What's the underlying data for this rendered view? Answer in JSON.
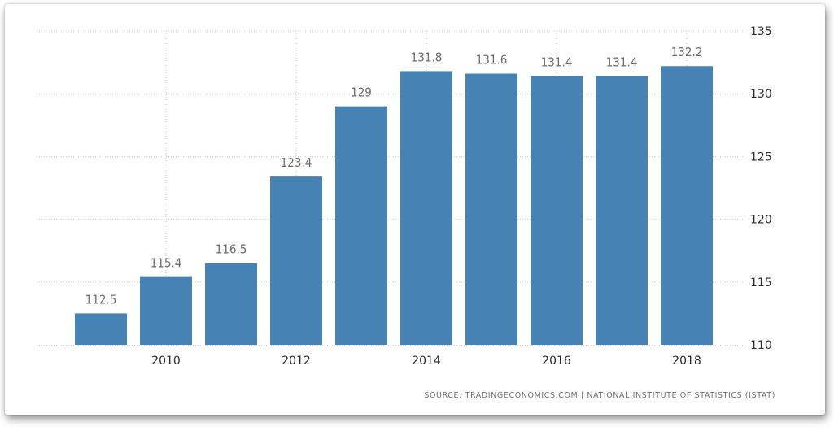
{
  "chart_data": {
    "type": "bar",
    "categories": [
      "2009",
      "2010",
      "2011",
      "2012",
      "2013",
      "2014",
      "2015",
      "2016",
      "2017",
      "2018"
    ],
    "values": [
      112.5,
      115.4,
      116.5,
      123.4,
      129,
      131.8,
      131.6,
      131.4,
      131.4,
      132.2
    ],
    "value_labels": [
      "112.5",
      "115.4",
      "116.5",
      "123.4",
      "129",
      "131.8",
      "131.6",
      "131.4",
      "131.4",
      "132.2"
    ],
    "x_tick_labels": [
      "2010",
      "2012",
      "2014",
      "2016",
      "2018"
    ],
    "y_ticks": [
      "110",
      "115",
      "120",
      "125",
      "130",
      "135"
    ],
    "ylim": [
      110,
      135
    ],
    "title": "",
    "xlabel": "",
    "ylabel": "",
    "grid": true,
    "y_axis_side": "right",
    "bar_color": "#4682b4"
  },
  "source": "SOURCE: TRADINGECONOMICS.COM | NATIONAL INSTITUTE OF STATISTICS (ISTAT)"
}
